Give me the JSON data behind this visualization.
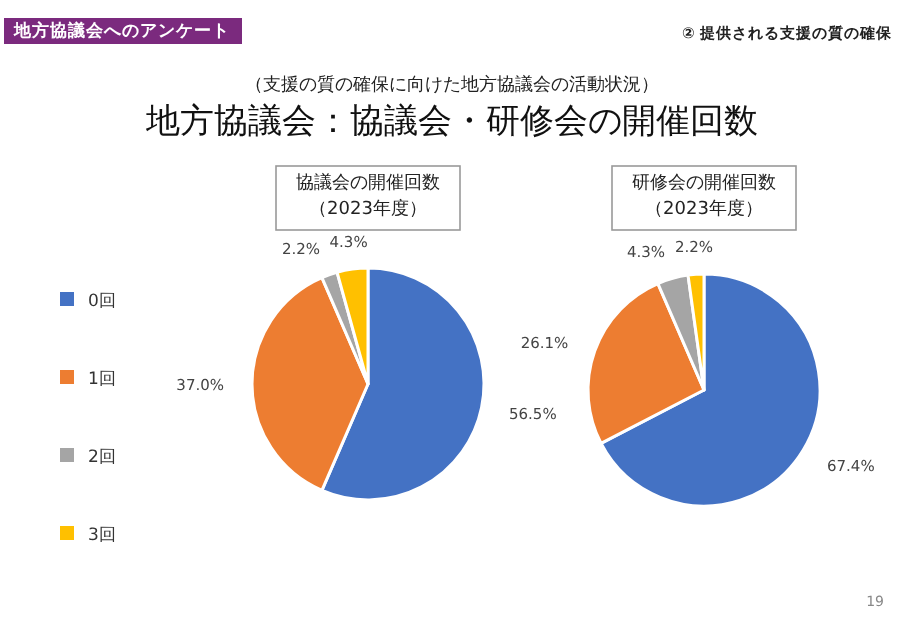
{
  "chart_data": [
    {
      "type": "pie",
      "title": "協議会の開催回数（2023年度）",
      "categories": [
        "0回",
        "1回",
        "2回",
        "3回"
      ],
      "values": [
        56.5,
        37.0,
        2.2,
        4.3
      ],
      "value_labels": [
        "56.5%",
        "37.0%",
        "2.2%",
        "4.3%"
      ],
      "colors": [
        "#4472c4",
        "#ed7d31",
        "#a5a5a5",
        "#ffc000"
      ],
      "legend": "left",
      "annotations": [
        "地方協議会へのアンケート",
        "② 提供される支援の質の確保",
        "（支援の質の確保に向けた地方協議会の活動状況）",
        "地方協議会：協議会・研修会の開催回数",
        "19"
      ]
    },
    {
      "type": "pie",
      "title": "研修会の開催回数（2023年度）",
      "categories": [
        null,
        null,
        null,
        null
      ],
      "values": [
        67.4,
        26.1,
        4.3,
        2.2
      ],
      "value_labels": [
        "67.4%",
        "26.1%",
        "4.3%",
        "2.2%"
      ],
      "colors": [
        "#4472c4",
        "#ed7d31",
        "#a5a5a5",
        "#ffc000"
      ]
    }
  ]
}
